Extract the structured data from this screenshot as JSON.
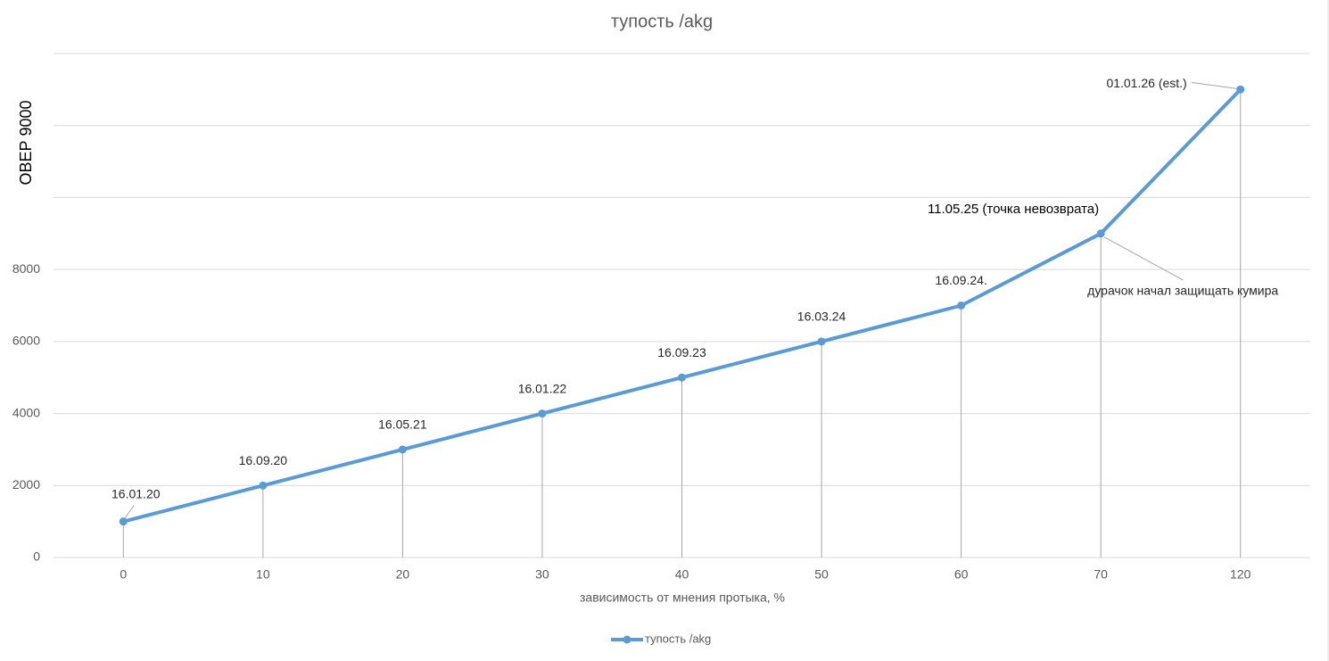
{
  "chart_data": {
    "type": "line",
    "title": "тупость /akg",
    "y_label": "ОВЕР 9000",
    "x_label": "зависимость от мнения протыка, %",
    "categories": [
      "0",
      "10",
      "20",
      "30",
      "40",
      "50",
      "60",
      "70",
      "120"
    ],
    "series": [
      {
        "name": "тупость /akg",
        "color": "#5b9bd5",
        "values": [
          1000,
          2000,
          3000,
          4000,
          5000,
          6000,
          7000,
          9000,
          13000
        ],
        "value_labels": [
          "16.01.20",
          "16.09.20",
          "16.05.21",
          "16.01.22",
          "16.09.23",
          "16.03.24",
          "16.09.24.",
          "11.05.25 (точка невозврата)",
          "01.01.26 (est.)"
        ]
      }
    ],
    "annotations": [
      {
        "text": "дурачок начал защищать кумира",
        "point": 7
      }
    ],
    "ylim": [
      0,
      14000
    ],
    "yticks": [
      0,
      2000,
      4000,
      6000,
      8000
    ],
    "ygrid": [
      0,
      2000,
      4000,
      6000,
      8000,
      10000,
      12000,
      14000
    ],
    "grid": true,
    "drop_lines": true,
    "legend": "bottom"
  }
}
